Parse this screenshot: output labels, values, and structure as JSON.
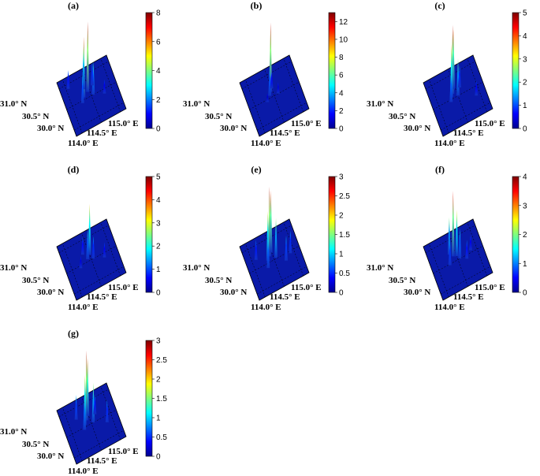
{
  "chart_data": [
    {
      "type": "surface3d",
      "title": "(a)",
      "colorbar_ticks": [
        "0",
        "2",
        "4",
        "6",
        "8"
      ],
      "zlim": [
        0,
        8
      ],
      "y_tick_labels": [
        "31.0° N",
        "30.5° N",
        "30.0° N"
      ],
      "x_tick_labels": [
        "114.0° E",
        "114.5° E",
        "115.0° E"
      ],
      "peaks": [
        {
          "lon": 114.45,
          "lat": 30.62,
          "value": 7.5
        },
        {
          "lon": 114.32,
          "lat": 30.55,
          "value": 6.5
        },
        {
          "lon": 114.38,
          "lat": 30.72,
          "value": 4.5
        },
        {
          "lon": 114.55,
          "lat": 30.5,
          "value": 3.5
        },
        {
          "lon": 114.25,
          "lat": 30.45,
          "value": 3.0
        },
        {
          "lon": 114.6,
          "lat": 30.7,
          "value": 2.5
        },
        {
          "lon": 114.05,
          "lat": 30.9,
          "value": 2.0
        },
        {
          "lon": 114.8,
          "lat": 30.4,
          "value": 1.5
        }
      ]
    },
    {
      "type": "surface3d",
      "title": "(b)",
      "colorbar_ticks": [
        "0",
        "2",
        "4",
        "6",
        "8",
        "10",
        "12"
      ],
      "zlim": [
        0,
        13
      ],
      "y_tick_labels": [
        "31.0° N",
        "30.5° N",
        "30.0° N"
      ],
      "x_tick_labels": [
        "114.0° E",
        "114.5° E",
        "115.0° E"
      ],
      "peaks": [
        {
          "lon": 114.45,
          "lat": 30.62,
          "value": 12.0
        },
        {
          "lon": 114.4,
          "lat": 30.55,
          "value": 5.0
        },
        {
          "lon": 114.5,
          "lat": 30.68,
          "value": 3.0
        },
        {
          "lon": 114.6,
          "lat": 30.5,
          "value": 2.0
        },
        {
          "lon": 114.3,
          "lat": 30.45,
          "value": 1.5
        }
      ]
    },
    {
      "type": "surface3d",
      "title": "(c)",
      "colorbar_ticks": [
        "0",
        "1",
        "2",
        "3",
        "4",
        "5"
      ],
      "zlim": [
        0,
        5
      ],
      "y_tick_labels": [
        "31.0° N",
        "30.5° N",
        "30.0° N"
      ],
      "x_tick_labels": [
        "114.0° E",
        "114.5° E",
        "115.0° E"
      ],
      "peaks": [
        {
          "lon": 114.4,
          "lat": 30.6,
          "value": 4.6
        },
        {
          "lon": 114.45,
          "lat": 30.68,
          "value": 4.0
        },
        {
          "lon": 114.35,
          "lat": 30.55,
          "value": 3.5
        },
        {
          "lon": 114.5,
          "lat": 30.5,
          "value": 2.5
        },
        {
          "lon": 114.3,
          "lat": 30.45,
          "value": 2.0
        },
        {
          "lon": 114.6,
          "lat": 30.65,
          "value": 1.5
        },
        {
          "lon": 114.9,
          "lat": 30.3,
          "value": 1.0
        }
      ]
    },
    {
      "type": "surface3d",
      "title": "(d)",
      "colorbar_ticks": [
        "0",
        "1",
        "2",
        "3",
        "4",
        "5"
      ],
      "zlim": [
        0,
        5
      ],
      "y_tick_labels": [
        "31.0° N",
        "30.5° N",
        "30.0° N"
      ],
      "x_tick_labels": [
        "114.0° E",
        "114.5° E",
        "115.0° E"
      ],
      "peaks": [
        {
          "lon": 114.5,
          "lat": 30.62,
          "value": 3.4
        },
        {
          "lon": 114.42,
          "lat": 30.55,
          "value": 2.0
        },
        {
          "lon": 114.55,
          "lat": 30.5,
          "value": 1.5
        },
        {
          "lon": 114.35,
          "lat": 30.7,
          "value": 1.2
        },
        {
          "lon": 114.8,
          "lat": 30.4,
          "value": 1.0
        },
        {
          "lon": 114.2,
          "lat": 30.45,
          "value": 0.8
        }
      ]
    },
    {
      "type": "surface3d",
      "title": "(e)",
      "colorbar_ticks": [
        "0",
        "0.5",
        "1",
        "1.5",
        "2",
        "2.5",
        "3"
      ],
      "zlim": [
        0,
        3
      ],
      "y_tick_labels": [
        "31.0° N",
        "30.5° N",
        "30.0° N"
      ],
      "x_tick_labels": [
        "114.0° E",
        "114.5° E",
        "115.0° E"
      ],
      "peaks": [
        {
          "lon": 114.42,
          "lat": 30.62,
          "value": 2.8
        },
        {
          "lon": 114.48,
          "lat": 30.68,
          "value": 2.5
        },
        {
          "lon": 114.35,
          "lat": 30.55,
          "value": 2.0
        },
        {
          "lon": 114.55,
          "lat": 30.52,
          "value": 1.6
        },
        {
          "lon": 114.3,
          "lat": 30.4,
          "value": 1.2
        },
        {
          "lon": 114.75,
          "lat": 30.35,
          "value": 1.0
        },
        {
          "lon": 114.9,
          "lat": 30.45,
          "value": 0.9
        },
        {
          "lon": 114.1,
          "lat": 30.7,
          "value": 0.8
        }
      ]
    },
    {
      "type": "surface3d",
      "title": "(f)",
      "colorbar_ticks": [
        "0",
        "1",
        "2",
        "3",
        "4"
      ],
      "zlim": [
        0,
        4
      ],
      "y_tick_labels": [
        "31.0° N",
        "30.5° N",
        "30.0° N"
      ],
      "x_tick_labels": [
        "114.0° E",
        "114.5° E",
        "115.0° E"
      ],
      "peaks": [
        {
          "lon": 114.42,
          "lat": 30.62,
          "value": 3.5
        },
        {
          "lon": 114.5,
          "lat": 30.58,
          "value": 2.5
        },
        {
          "lon": 114.35,
          "lat": 30.7,
          "value": 2.0
        },
        {
          "lon": 114.55,
          "lat": 30.5,
          "value": 1.6
        },
        {
          "lon": 114.28,
          "lat": 30.48,
          "value": 1.3
        },
        {
          "lon": 114.7,
          "lat": 30.42,
          "value": 1.0
        },
        {
          "lon": 114.85,
          "lat": 30.55,
          "value": 0.8
        }
      ]
    },
    {
      "type": "surface3d",
      "title": "(g)",
      "colorbar_ticks": [
        "0",
        "0.5",
        "1",
        "1.5",
        "2",
        "2.5",
        "3"
      ],
      "zlim": [
        0,
        3
      ],
      "y_tick_labels": [
        "31.0° N",
        "30.5° N",
        "30.0° N"
      ],
      "x_tick_labels": [
        "114.0° E",
        "114.5° E",
        "115.0° E"
      ],
      "peaks": [
        {
          "lon": 114.42,
          "lat": 30.62,
          "value": 2.8
        },
        {
          "lon": 114.48,
          "lat": 30.7,
          "value": 2.3
        },
        {
          "lon": 114.35,
          "lat": 30.55,
          "value": 2.0
        },
        {
          "lon": 114.55,
          "lat": 30.5,
          "value": 1.6
        },
        {
          "lon": 114.3,
          "lat": 30.45,
          "value": 1.3
        },
        {
          "lon": 114.2,
          "lat": 30.75,
          "value": 1.0
        },
        {
          "lon": 114.85,
          "lat": 30.35,
          "value": 0.9
        },
        {
          "lon": 114.65,
          "lat": 30.65,
          "value": 0.8
        }
      ]
    }
  ]
}
